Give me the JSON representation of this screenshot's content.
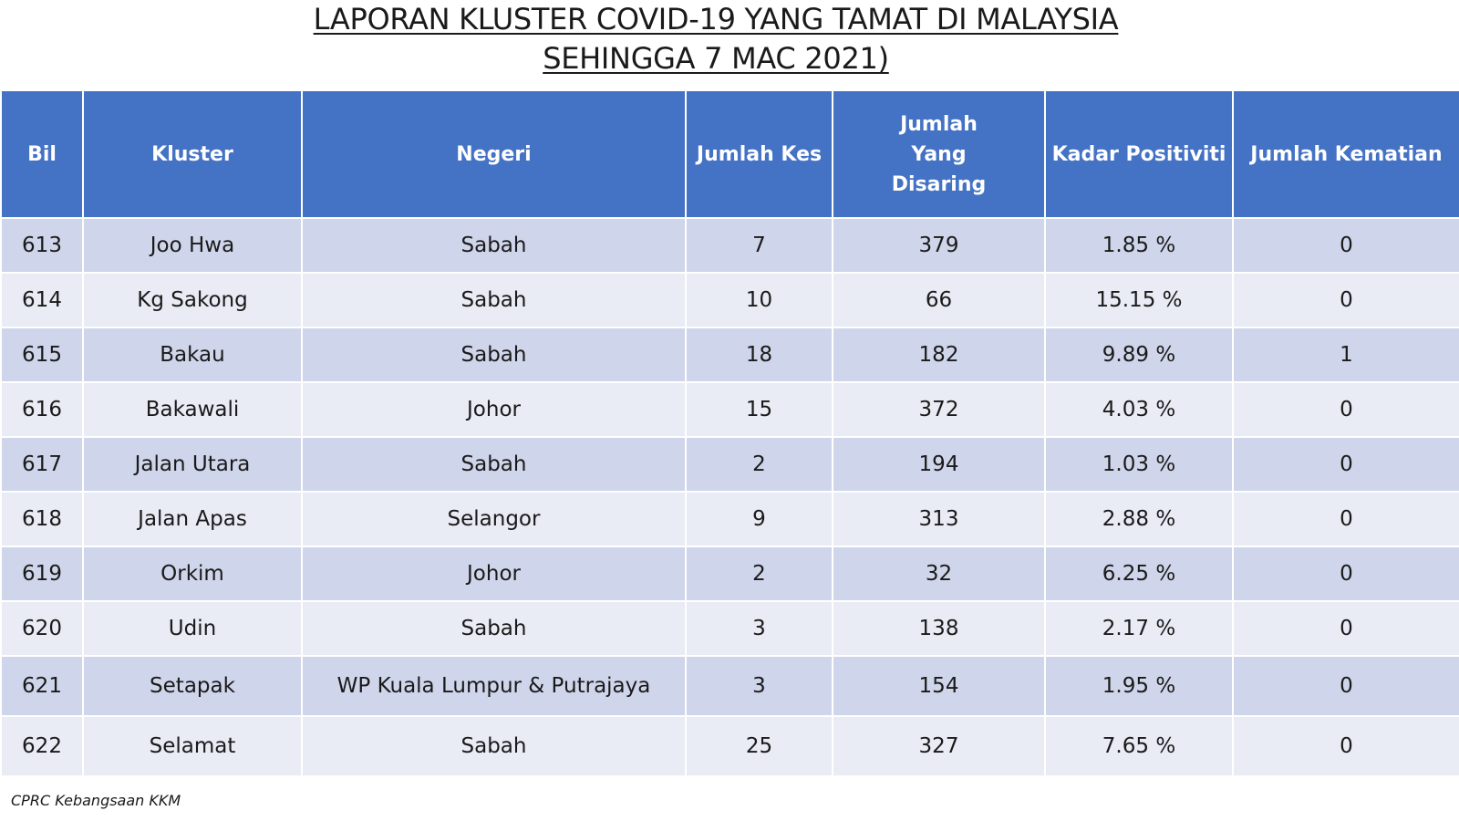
{
  "title": {
    "line1": "LAPORAN KLUSTER COVID-19 YANG TAMAT DI MALAYSIA",
    "line2": "SEHINGGA 7 MAC 2021)"
  },
  "table": {
    "headers": [
      "Bil",
      "Kluster",
      "Negeri",
      "Jumlah Kes",
      "Jumlah Yang Disaring",
      "Kadar Positiviti",
      "Jumlah Kematian"
    ],
    "rows": [
      [
        "613",
        "Joo Hwa",
        "Sabah",
        "7",
        "379",
        "1.85 %",
        "0"
      ],
      [
        "614",
        "Kg Sakong",
        "Sabah",
        "10",
        "66",
        "15.15 %",
        "0"
      ],
      [
        "615",
        "Bakau",
        "Sabah",
        "18",
        "182",
        "9.89 %",
        "1"
      ],
      [
        "616",
        "Bakawali",
        "Johor",
        "15",
        "372",
        "4.03 %",
        "0"
      ],
      [
        "617",
        "Jalan Utara",
        "Sabah",
        "2",
        "194",
        "1.03 %",
        "0"
      ],
      [
        "618",
        "Jalan Apas",
        "Selangor",
        "9",
        "313",
        "2.88 %",
        "0"
      ],
      [
        "619",
        "Orkim",
        "Johor",
        "2",
        "32",
        "6.25 %",
        "0"
      ],
      [
        "620",
        "Udin",
        "Sabah",
        "3",
        "138",
        "2.17 %",
        "0"
      ],
      [
        "621",
        "Setapak",
        "WP Kuala Lumpur & Putrajaya",
        "3",
        "154",
        "1.95 %",
        "0"
      ],
      [
        "622",
        "Selamat",
        "Sabah",
        "25",
        "327",
        "7.65 %",
        "0"
      ]
    ]
  },
  "footer": "CPRC Kebangsaan KKM",
  "colors": {
    "header_bg": "#4472c4",
    "row_dark": "#cfd5ea",
    "row_light": "#e9ebf5"
  }
}
